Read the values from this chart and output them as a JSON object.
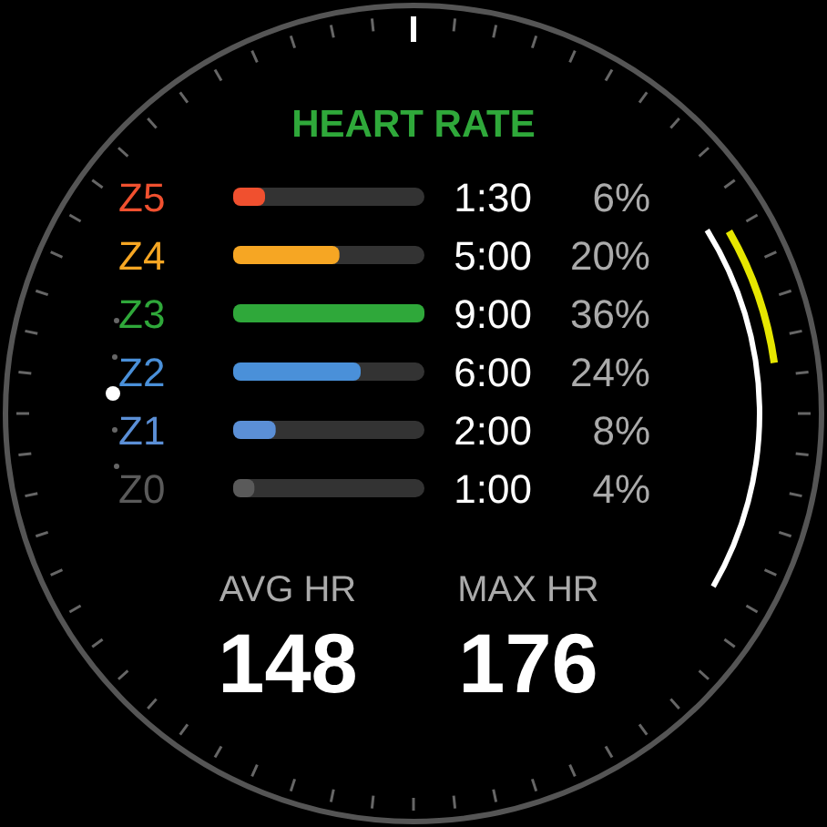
{
  "chart_data": {
    "type": "bar",
    "orientation": "horizontal",
    "title": "HEART RATE",
    "categories": [
      "Z5",
      "Z4",
      "Z3",
      "Z2",
      "Z1",
      "Z0"
    ],
    "values": [
      6,
      20,
      36,
      24,
      8,
      4
    ],
    "colors": [
      "#f0502f",
      "#f6a623",
      "#2fa83a",
      "#4a90d9",
      "#5b8fd6",
      "#5a5a5a"
    ],
    "value_labels": [
      "6%",
      "20%",
      "36%",
      "24%",
      "8%",
      "4%"
    ],
    "annotations": [
      "1:30",
      "5:00",
      "9:00",
      "6:00",
      "2:00",
      "1:00",
      "AVG HR",
      "148",
      "MAX HR",
      "176"
    ]
  }
}
